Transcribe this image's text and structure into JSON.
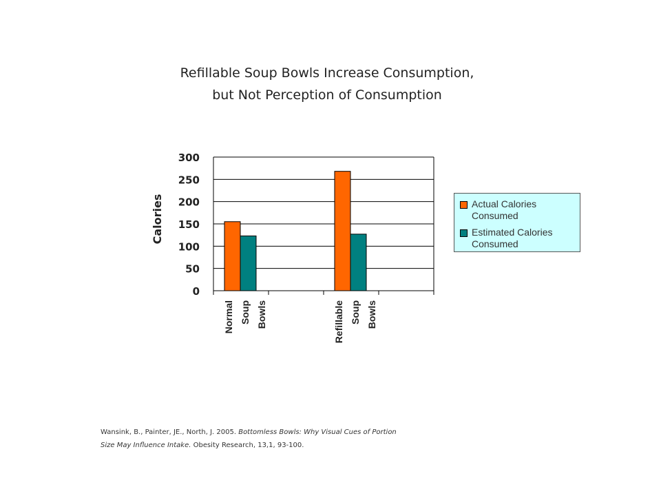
{
  "chart_data": {
    "type": "bar",
    "title_lines": [
      "Refillable Soup Bowls Increase Consumption,",
      "but Not Perception of Consumption"
    ],
    "ylabel": "Calories",
    "xlabel": "",
    "ylim": [
      0,
      300
    ],
    "yticks": [
      0,
      50,
      100,
      150,
      200,
      250,
      300
    ],
    "grid": true,
    "legend_position": "right",
    "categories": [
      [
        "Normal",
        "Soup",
        "Bowls"
      ],
      [
        "Refillable",
        "Soup",
        "Bowls"
      ]
    ],
    "series": [
      {
        "name": "Actual Calories Consumed",
        "name_lines": [
          "Actual Calories",
          "Consumed"
        ],
        "color": "#ff6600",
        "values": [
          155,
          268
        ]
      },
      {
        "name": "Estimated Calories Consumed",
        "name_lines": [
          "Estimated Calories",
          "Consumed"
        ],
        "color": "#008080",
        "values": [
          123,
          127
        ]
      }
    ]
  },
  "citation": {
    "line1_plain": "Wansink, B., Painter, JE., North, J. 2005. ",
    "line1_italic": "Bottomless Bowls: Why Visual Cues of Portion",
    "line2_italic": "Size May Influence Intake.",
    "line2_plain": " Obesity Research, 13,1, 93-100."
  }
}
